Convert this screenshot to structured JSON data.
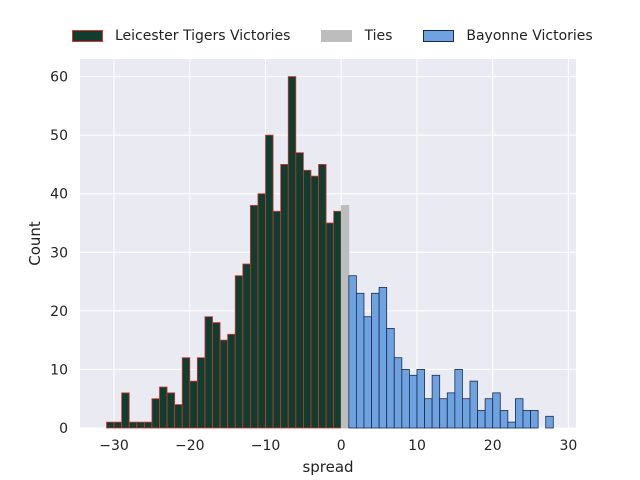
{
  "chart_data": {
    "type": "bar",
    "title": "",
    "xlabel": "spread",
    "ylabel": "Count",
    "xlim": [
      -34.5,
      31
    ],
    "ylim": [
      0,
      63
    ],
    "xticks": [
      -30,
      -20,
      -10,
      0,
      10,
      20,
      30
    ],
    "yticks": [
      0,
      10,
      20,
      30,
      40,
      50,
      60
    ],
    "grid": true,
    "legend_position": "top",
    "bin_width": 1,
    "colors": {
      "Leicester Tigers Victories": {
        "fill": "#0f3d2e",
        "edge": "#d33333"
      },
      "Ties": {
        "fill": "#bdbdbd",
        "edge": "#bdbdbd"
      },
      "Bayonne Victories": {
        "fill": "#6ea3e0",
        "edge": "#1a2a55"
      }
    },
    "series": [
      {
        "name": "Leicester Tigers Victories",
        "x": [
          -31,
          -30,
          -29,
          -28,
          -27,
          -26,
          -25,
          -24,
          -23,
          -22,
          -21,
          -20,
          -19,
          -18,
          -17,
          -16,
          -15,
          -14,
          -13,
          -12,
          -11,
          -10,
          -9,
          -8,
          -7,
          -6,
          -5,
          -4,
          -3,
          -2
        ],
        "values": [
          1,
          1,
          6,
          1,
          1,
          1,
          5,
          7,
          6,
          4,
          12,
          8,
          12,
          19,
          18,
          15,
          16,
          26,
          28,
          38,
          40,
          50,
          37,
          45,
          60,
          47,
          44,
          43,
          45,
          35
        ]
      },
      {
        "name": "Leicester Tigers Victories",
        "x": [
          -1
        ],
        "values": [
          37
        ]
      },
      {
        "name": "Ties",
        "x": [
          0
        ],
        "values": [
          38
        ]
      },
      {
        "name": "Bayonne Victories",
        "x": [
          1,
          2,
          3,
          4,
          5,
          6,
          7,
          8,
          9,
          10,
          11,
          12,
          13,
          14,
          15,
          16,
          17,
          18,
          19,
          20,
          21,
          22,
          23,
          24,
          25,
          27
        ],
        "values": [
          26,
          23,
          19,
          23,
          24,
          17,
          12,
          10,
          9,
          10,
          5,
          9,
          5,
          6,
          10,
          5,
          8,
          3,
          5,
          6,
          3,
          1,
          5,
          3,
          3,
          2
        ]
      }
    ],
    "legend": [
      {
        "label": "Leicester Tigers Victories",
        "swatch": "sw-lt"
      },
      {
        "label": "Ties",
        "swatch": "sw-tie"
      },
      {
        "label": "Bayonne Victories",
        "swatch": "sw-bay"
      }
    ]
  }
}
